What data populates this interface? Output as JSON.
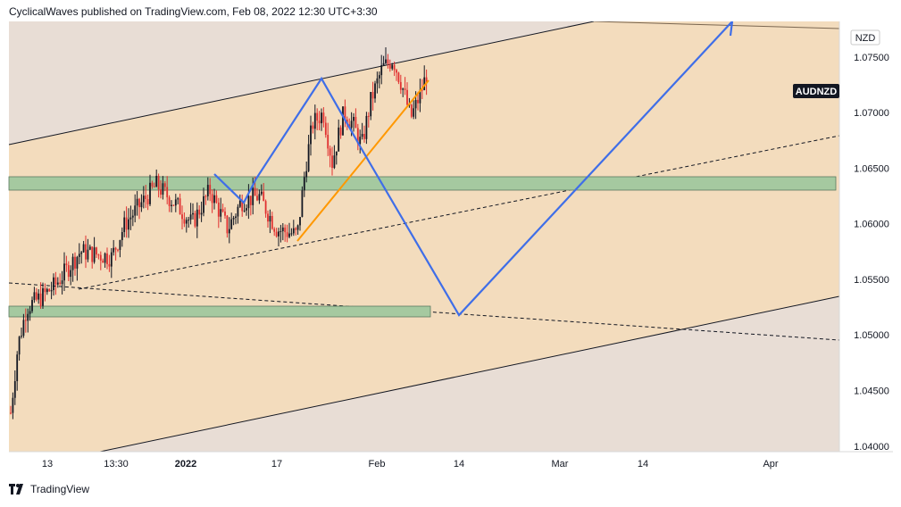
{
  "header": {
    "publisher_line": "CyclicalWaves published on TradingView.com, Feb 08, 2022 12:30 UTC+3:30"
  },
  "footer": {
    "brand": "TradingView"
  },
  "chart_data": {
    "type": "candlestick",
    "symbol_label": "AUDNZD",
    "currency_label": "NZD",
    "last_price": 1.0735,
    "y_ticks": [
      "1.07500",
      "1.07000",
      "1.06500",
      "1.06000",
      "1.05500",
      "1.05000",
      "1.04500",
      "1.04000"
    ],
    "y_tick_values": [
      1.075,
      1.07,
      1.065,
      1.06,
      1.055,
      1.05,
      1.045,
      1.04
    ],
    "x_ticks": [
      "13",
      "13:30",
      "2022",
      "17",
      "Feb",
      "14",
      "Mar",
      "14",
      "Apr"
    ],
    "ylim": [
      1.0395,
      1.0782
    ],
    "candles_approx_range": {
      "start": 1.043,
      "high": 1.076,
      "low": 1.0425,
      "last": 1.0735
    },
    "zones": [
      {
        "name": "upper-support-zone",
        "from": 1.0638,
        "to": 1.065
      },
      {
        "name": "lower-support-zone",
        "from": 1.052,
        "to": 1.053
      }
    ],
    "colors": {
      "channel_fill": "#f3dcbd",
      "outside_fill": "#e8ddd5",
      "zone_fill": "#a5c9a0",
      "projection": "#3f6ee8",
      "trendline": "#ff9800",
      "candle_up": "#131722",
      "candle_down": "#e03030"
    }
  }
}
